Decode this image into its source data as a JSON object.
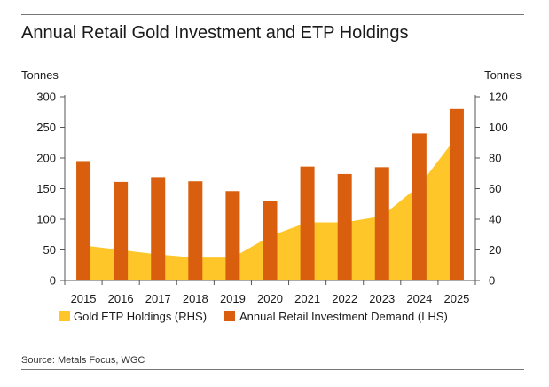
{
  "title": "Annual Retail Gold Investment and ETP Holdings",
  "source": "Source: Metals Focus, WGC",
  "colors": {
    "area": "#FFC629",
    "bar": "#D95F0E",
    "axis": "#555555",
    "rule": "#777777"
  },
  "chart_data": {
    "type": "bar",
    "categories": [
      "2015",
      "2016",
      "2017",
      "2018",
      "2019",
      "2020",
      "2021",
      "2022",
      "2023",
      "2024",
      "2025"
    ],
    "series": [
      {
        "name": "Annual Retail Investment Demand (LHS)",
        "type": "bar",
        "axis": "left",
        "values": [
          195,
          161,
          169,
          162,
          146,
          130,
          186,
          174,
          185,
          240,
          280
        ]
      },
      {
        "name": "Gold ETP Holdings (RHS)",
        "type": "area",
        "axis": "right",
        "values": [
          23,
          20,
          17,
          15,
          15,
          29,
          38,
          38,
          42,
          62,
          94
        ]
      }
    ],
    "left_axis": {
      "label": "Tonnes",
      "range": [
        0,
        300
      ],
      "ticks": [
        "0",
        "50",
        "100",
        "150",
        "200",
        "250",
        "300"
      ]
    },
    "right_axis": {
      "label": "Tonnes",
      "range": [
        0,
        120
      ],
      "ticks": [
        "0",
        "20",
        "40",
        "60",
        "80",
        "100",
        "120"
      ]
    },
    "legend": [
      "Gold ETP Holdings (RHS)",
      "Annual Retail Investment Demand (LHS)"
    ],
    "legend_position": "bottom",
    "grid": false
  }
}
